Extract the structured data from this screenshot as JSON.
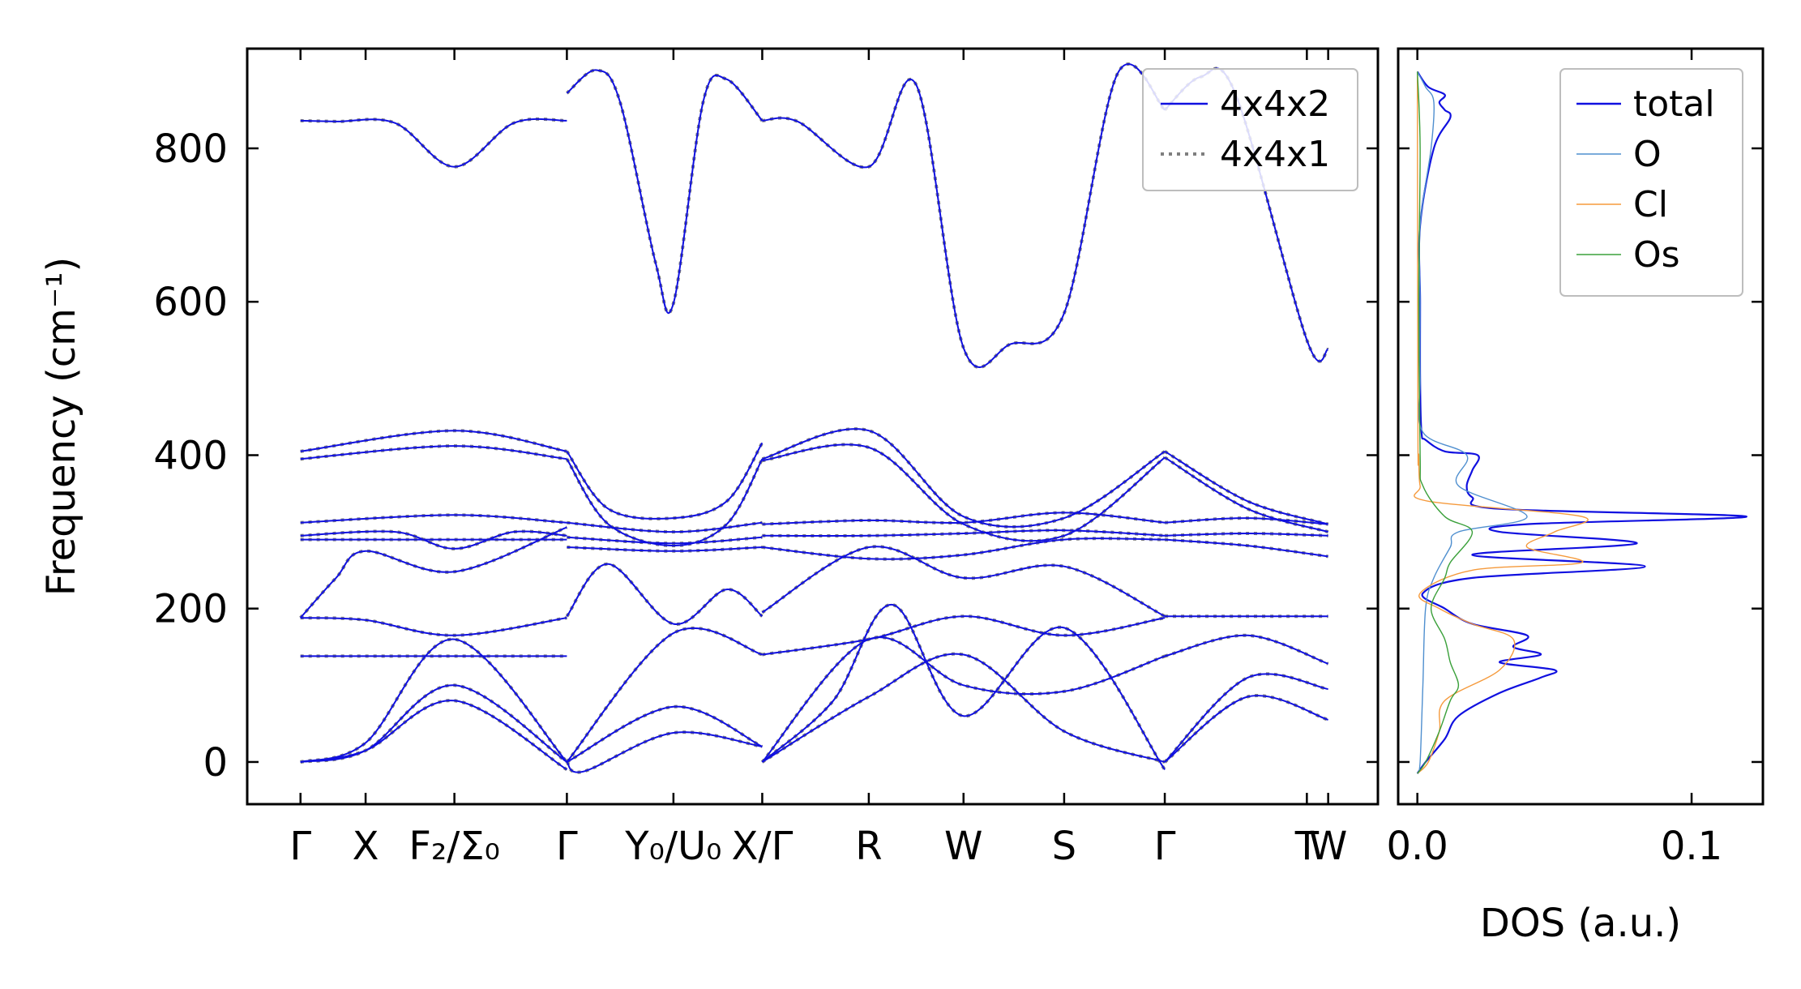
{
  "chart_data": [
    {
      "type": "line",
      "panel": "phonon-dispersion",
      "ylabel": "Frequency (cm⁻¹)",
      "ylim": [
        -55,
        930
      ],
      "yticks": [
        0,
        200,
        400,
        600,
        800
      ],
      "kpoints": [
        {
          "label": "Γ",
          "x": 0
        },
        {
          "label": "X",
          "x": 0.55
        },
        {
          "label": "F₂/Σ₀",
          "x": 1.3
        },
        {
          "label": "Γ",
          "x": 2.25
        },
        {
          "label": "Y₀/U₀",
          "x": 3.15
        },
        {
          "label": "X/Γ",
          "x": 3.9
        },
        {
          "label": "R",
          "x": 4.8
        },
        {
          "label": "W",
          "x": 5.6
        },
        {
          "label": "S",
          "x": 6.45
        },
        {
          "label": "Γ",
          "x": 7.3
        },
        {
          "label": "T",
          "x": 8.5
        },
        {
          "label": "W",
          "x": 8.68
        }
      ],
      "xlim": [
        -0.45,
        9.1
      ],
      "series": [
        {
          "name": "4x4x2",
          "color": "#1010e0",
          "style": "solid"
        },
        {
          "name": "4x4x1",
          "color": "#7f7f7f",
          "style": "dotted"
        }
      ],
      "bands": [
        {
          "start": 0,
          "end": 2.25,
          "x": [
            0,
            0.3,
            0.8,
            1.3,
            1.8,
            2.25
          ],
          "y": [
            836,
            835,
            833,
            776,
            833,
            836
          ]
        },
        {
          "start": 2.25,
          "end": 3.9,
          "x": [
            2.25,
            2.5,
            2.7,
            3.0,
            3.15,
            3.4,
            3.6,
            3.9
          ],
          "y": [
            872,
            902,
            860,
            650,
            598,
            860,
            890,
            836
          ]
        },
        {
          "start": 3.9,
          "end": 7.3,
          "x": [
            3.9,
            4.2,
            4.8,
            5.2,
            5.6,
            6.0,
            6.45,
            6.9,
            7.3
          ],
          "y": [
            836,
            835,
            776,
            883,
            540,
            545,
            585,
            897,
            850
          ]
        },
        {
          "start": 7.3,
          "end": 8.68,
          "x": [
            7.3,
            7.6,
            7.9,
            8.5,
            8.68
          ],
          "y": [
            850,
            893,
            870,
            550,
            538
          ]
        },
        {
          "start": 0,
          "end": 2.25,
          "x": [
            0,
            1.3,
            2.25
          ],
          "y": [
            405,
            432,
            405
          ]
        },
        {
          "start": 0,
          "end": 2.25,
          "x": [
            0,
            1.3,
            2.25
          ],
          "y": [
            395,
            412,
            395
          ]
        },
        {
          "start": 2.25,
          "end": 3.9,
          "x": [
            2.25,
            2.6,
            3.15,
            3.6,
            3.9
          ],
          "y": [
            405,
            330,
            318,
            340,
            416
          ]
        },
        {
          "start": 2.25,
          "end": 3.9,
          "x": [
            2.25,
            2.6,
            3.15,
            3.6,
            3.9
          ],
          "y": [
            395,
            310,
            282,
            310,
            395
          ]
        },
        {
          "start": 3.9,
          "end": 7.3,
          "x": [
            3.9,
            4.8,
            5.6,
            6.45,
            7.3
          ],
          "y": [
            395,
            432,
            320,
            318,
            405
          ]
        },
        {
          "start": 3.9,
          "end": 7.3,
          "x": [
            3.9,
            4.8,
            5.6,
            6.45,
            7.3
          ],
          "y": [
            393,
            410,
            310,
            295,
            397
          ]
        },
        {
          "start": 7.3,
          "end": 8.68,
          "x": [
            7.3,
            8.0,
            8.68
          ],
          "y": [
            405,
            340,
            310
          ]
        },
        {
          "start": 7.3,
          "end": 8.68,
          "x": [
            7.3,
            8.0,
            8.68
          ],
          "y": [
            397,
            330,
            300
          ]
        },
        {
          "start": 0,
          "end": 2.25,
          "x": [
            0,
            1.3,
            2.25
          ],
          "y": [
            312,
            322,
            312
          ]
        },
        {
          "start": 0,
          "end": 2.25,
          "x": [
            0,
            0.8,
            1.3,
            1.8,
            2.25
          ],
          "y": [
            295,
            300,
            278,
            300,
            295
          ]
        },
        {
          "start": 0,
          "end": 2.25,
          "x": [
            0,
            0.5,
            1.3,
            2.25
          ],
          "y": [
            290,
            290,
            290,
            290
          ]
        },
        {
          "start": 0,
          "end": 2.25,
          "x": [
            0,
            0.3,
            0.55,
            1.3,
            2.25
          ],
          "y": [
            188,
            240,
            275,
            248,
            306
          ]
        },
        {
          "start": 2.25,
          "end": 3.9,
          "x": [
            2.25,
            3.15,
            3.9
          ],
          "y": [
            312,
            300,
            312
          ]
        },
        {
          "start": 2.25,
          "end": 3.9,
          "x": [
            2.25,
            3.15,
            3.9
          ],
          "y": [
            293,
            285,
            293
          ]
        },
        {
          "start": 2.25,
          "end": 3.9,
          "x": [
            2.25,
            3.15,
            3.9
          ],
          "y": [
            280,
            275,
            280
          ]
        },
        {
          "start": 3.9,
          "end": 7.3,
          "x": [
            3.9,
            4.8,
            5.6,
            6.45,
            7.3
          ],
          "y": [
            310,
            315,
            312,
            325,
            312
          ]
        },
        {
          "start": 3.9,
          "end": 7.3,
          "x": [
            3.9,
            4.8,
            5.6,
            6.45,
            7.3
          ],
          "y": [
            295,
            295,
            298,
            302,
            295
          ]
        },
        {
          "start": 3.9,
          "end": 7.3,
          "x": [
            3.9,
            4.8,
            5.6,
            6.45,
            7.3
          ],
          "y": [
            280,
            265,
            270,
            290,
            290
          ]
        },
        {
          "start": 7.3,
          "end": 8.68,
          "x": [
            7.3,
            8.0,
            8.68
          ],
          "y": [
            312,
            318,
            310
          ]
        },
        {
          "start": 7.3,
          "end": 8.68,
          "x": [
            7.3,
            8.0,
            8.68
          ],
          "y": [
            295,
            298,
            295
          ]
        },
        {
          "start": 7.3,
          "end": 8.68,
          "x": [
            7.3,
            8.0,
            8.68
          ],
          "y": [
            290,
            282,
            268
          ]
        },
        {
          "start": 0,
          "end": 2.25,
          "x": [
            0,
            0.55,
            1.3,
            2.25
          ],
          "y": [
            188,
            185,
            165,
            188
          ]
        },
        {
          "start": 0,
          "end": 2.25,
          "x": [
            0,
            0.55,
            1.3,
            2.25
          ],
          "y": [
            138,
            138,
            138,
            138
          ]
        },
        {
          "start": 0,
          "end": 2.25,
          "x": [
            0,
            0.55,
            1.3,
            2.25
          ],
          "y": [
            0,
            25,
            160,
            0
          ]
        },
        {
          "start": 0,
          "end": 2.25,
          "x": [
            0,
            0.55,
            1.3,
            2.25
          ],
          "y": [
            0,
            15,
            100,
            0
          ]
        },
        {
          "start": 0,
          "end": 2.25,
          "x": [
            0,
            0.55,
            1.3,
            2.25
          ],
          "y": [
            0,
            15,
            80,
            -10
          ]
        },
        {
          "start": 2.25,
          "end": 3.9,
          "x": [
            2.25,
            2.6,
            3.15,
            3.6,
            3.9
          ],
          "y": [
            190,
            258,
            180,
            225,
            190
          ]
        },
        {
          "start": 2.25,
          "end": 3.9,
          "x": [
            2.25,
            3.15,
            3.9
          ],
          "y": [
            0,
            168,
            140
          ]
        },
        {
          "start": 2.25,
          "end": 3.9,
          "x": [
            2.25,
            3.15,
            3.9
          ],
          "y": [
            0,
            72,
            20
          ]
        },
        {
          "start": 2.25,
          "end": 3.9,
          "x": [
            2.25,
            2.4,
            3.15,
            3.9
          ],
          "y": [
            0,
            -12,
            38,
            20
          ]
        },
        {
          "start": 3.9,
          "end": 7.3,
          "x": [
            3.9,
            4.8,
            5.6,
            6.45,
            7.3
          ],
          "y": [
            195,
            280,
            240,
            255,
            190
          ]
        },
        {
          "start": 3.9,
          "end": 7.3,
          "x": [
            3.9,
            4.8,
            5.6,
            6.45,
            7.3
          ],
          "y": [
            140,
            160,
            190,
            165,
            188
          ]
        },
        {
          "start": 3.9,
          "end": 7.3,
          "x": [
            3.9,
            4.8,
            5.6,
            6.45,
            7.3
          ],
          "y": [
            0,
            160,
            100,
            92,
            138
          ]
        },
        {
          "start": 3.9,
          "end": 7.3,
          "x": [
            3.9,
            4.8,
            5.6,
            6.45,
            7.3
          ],
          "y": [
            0,
            85,
            140,
            40,
            0
          ]
        },
        {
          "start": 3.9,
          "end": 7.3,
          "x": [
            3.9,
            4.5,
            5.0,
            5.6,
            6.45,
            7.3
          ],
          "y": [
            0,
            80,
            205,
            60,
            175,
            -10
          ]
        },
        {
          "start": 7.3,
          "end": 8.68,
          "x": [
            7.3,
            8.0,
            8.68
          ],
          "y": [
            190,
            190,
            190
          ]
        },
        {
          "start": 7.3,
          "end": 8.68,
          "x": [
            7.3,
            8.0,
            8.68
          ],
          "y": [
            138,
            165,
            128
          ]
        },
        {
          "start": 7.3,
          "end": 8.68,
          "x": [
            7.3,
            8.0,
            8.68
          ],
          "y": [
            0,
            110,
            95
          ]
        },
        {
          "start": 7.3,
          "end": 8.68,
          "x": [
            7.3,
            8.0,
            8.68
          ],
          "y": [
            0,
            85,
            55
          ]
        }
      ]
    },
    {
      "type": "line",
      "panel": "dos",
      "xlabel": "DOS (a.u.)",
      "xlim": [
        -0.007,
        0.126
      ],
      "ylim": [
        -55,
        930
      ],
      "xticks": [
        {
          "value": 0.0,
          "label": "0.0"
        },
        {
          "value": 0.1,
          "label": "0.1"
        }
      ],
      "series": [
        {
          "name": "total",
          "color": "#1010e0",
          "freq": [
            -15,
            0,
            30,
            60,
            90,
            110,
            120,
            130,
            140,
            150,
            165,
            180,
            200,
            220,
            240,
            255,
            270,
            285,
            300,
            310,
            320,
            330,
            345,
            360,
            380,
            400,
            405,
            420,
            430,
            500,
            600,
            700,
            800,
            840,
            850,
            860,
            870,
            880,
            900
          ],
          "values": [
            0,
            0.003,
            0.01,
            0.015,
            0.03,
            0.045,
            0.05,
            0.03,
            0.045,
            0.035,
            0.04,
            0.02,
            0.01,
            0.002,
            0.02,
            0.083,
            0.02,
            0.08,
            0.03,
            0.04,
            0.12,
            0.03,
            0.02,
            0.018,
            0.02,
            0.022,
            0.01,
            0.003,
            0.0015,
            0.001,
            0.001,
            0.001,
            0.006,
            0.012,
            0.01,
            0.008,
            0.01,
            0.004,
            0.0
          ]
        },
        {
          "name": "O",
          "color": "#4f8fcf",
          "freq": [
            -15,
            0,
            100,
            200,
            240,
            280,
            300,
            320,
            360,
            400,
            430,
            500,
            600,
            700,
            800,
            860,
            880,
            900
          ],
          "values": [
            0,
            0.001,
            0.002,
            0.003,
            0.006,
            0.012,
            0.015,
            0.04,
            0.015,
            0.018,
            0.002,
            0.001,
            0.001,
            0.001,
            0.005,
            0.006,
            0.003,
            0.0
          ]
        },
        {
          "name": "Cl",
          "color": "#f59a3c",
          "freq": [
            -15,
            0,
            40,
            80,
            120,
            160,
            180,
            200,
            220,
            250,
            260,
            280,
            300,
            320,
            340,
            360,
            400,
            430,
            900
          ],
          "values": [
            0,
            0.004,
            0.008,
            0.01,
            0.03,
            0.035,
            0.02,
            0.008,
            0.001,
            0.02,
            0.06,
            0.04,
            0.05,
            0.06,
            0.004,
            0.001,
            0.0005,
            0.0002,
            0.0
          ]
        },
        {
          "name": "Os",
          "color": "#3aa03a",
          "freq": [
            -15,
            0,
            40,
            80,
            100,
            130,
            160,
            200,
            240,
            260,
            300,
            320,
            360,
            400,
            600,
            800,
            900
          ],
          "values": [
            0,
            0.003,
            0.008,
            0.012,
            0.015,
            0.012,
            0.01,
            0.005,
            0.01,
            0.012,
            0.02,
            0.01,
            0.002,
            0.001,
            0.0005,
            0.001,
            0.0
          ]
        }
      ]
    }
  ]
}
